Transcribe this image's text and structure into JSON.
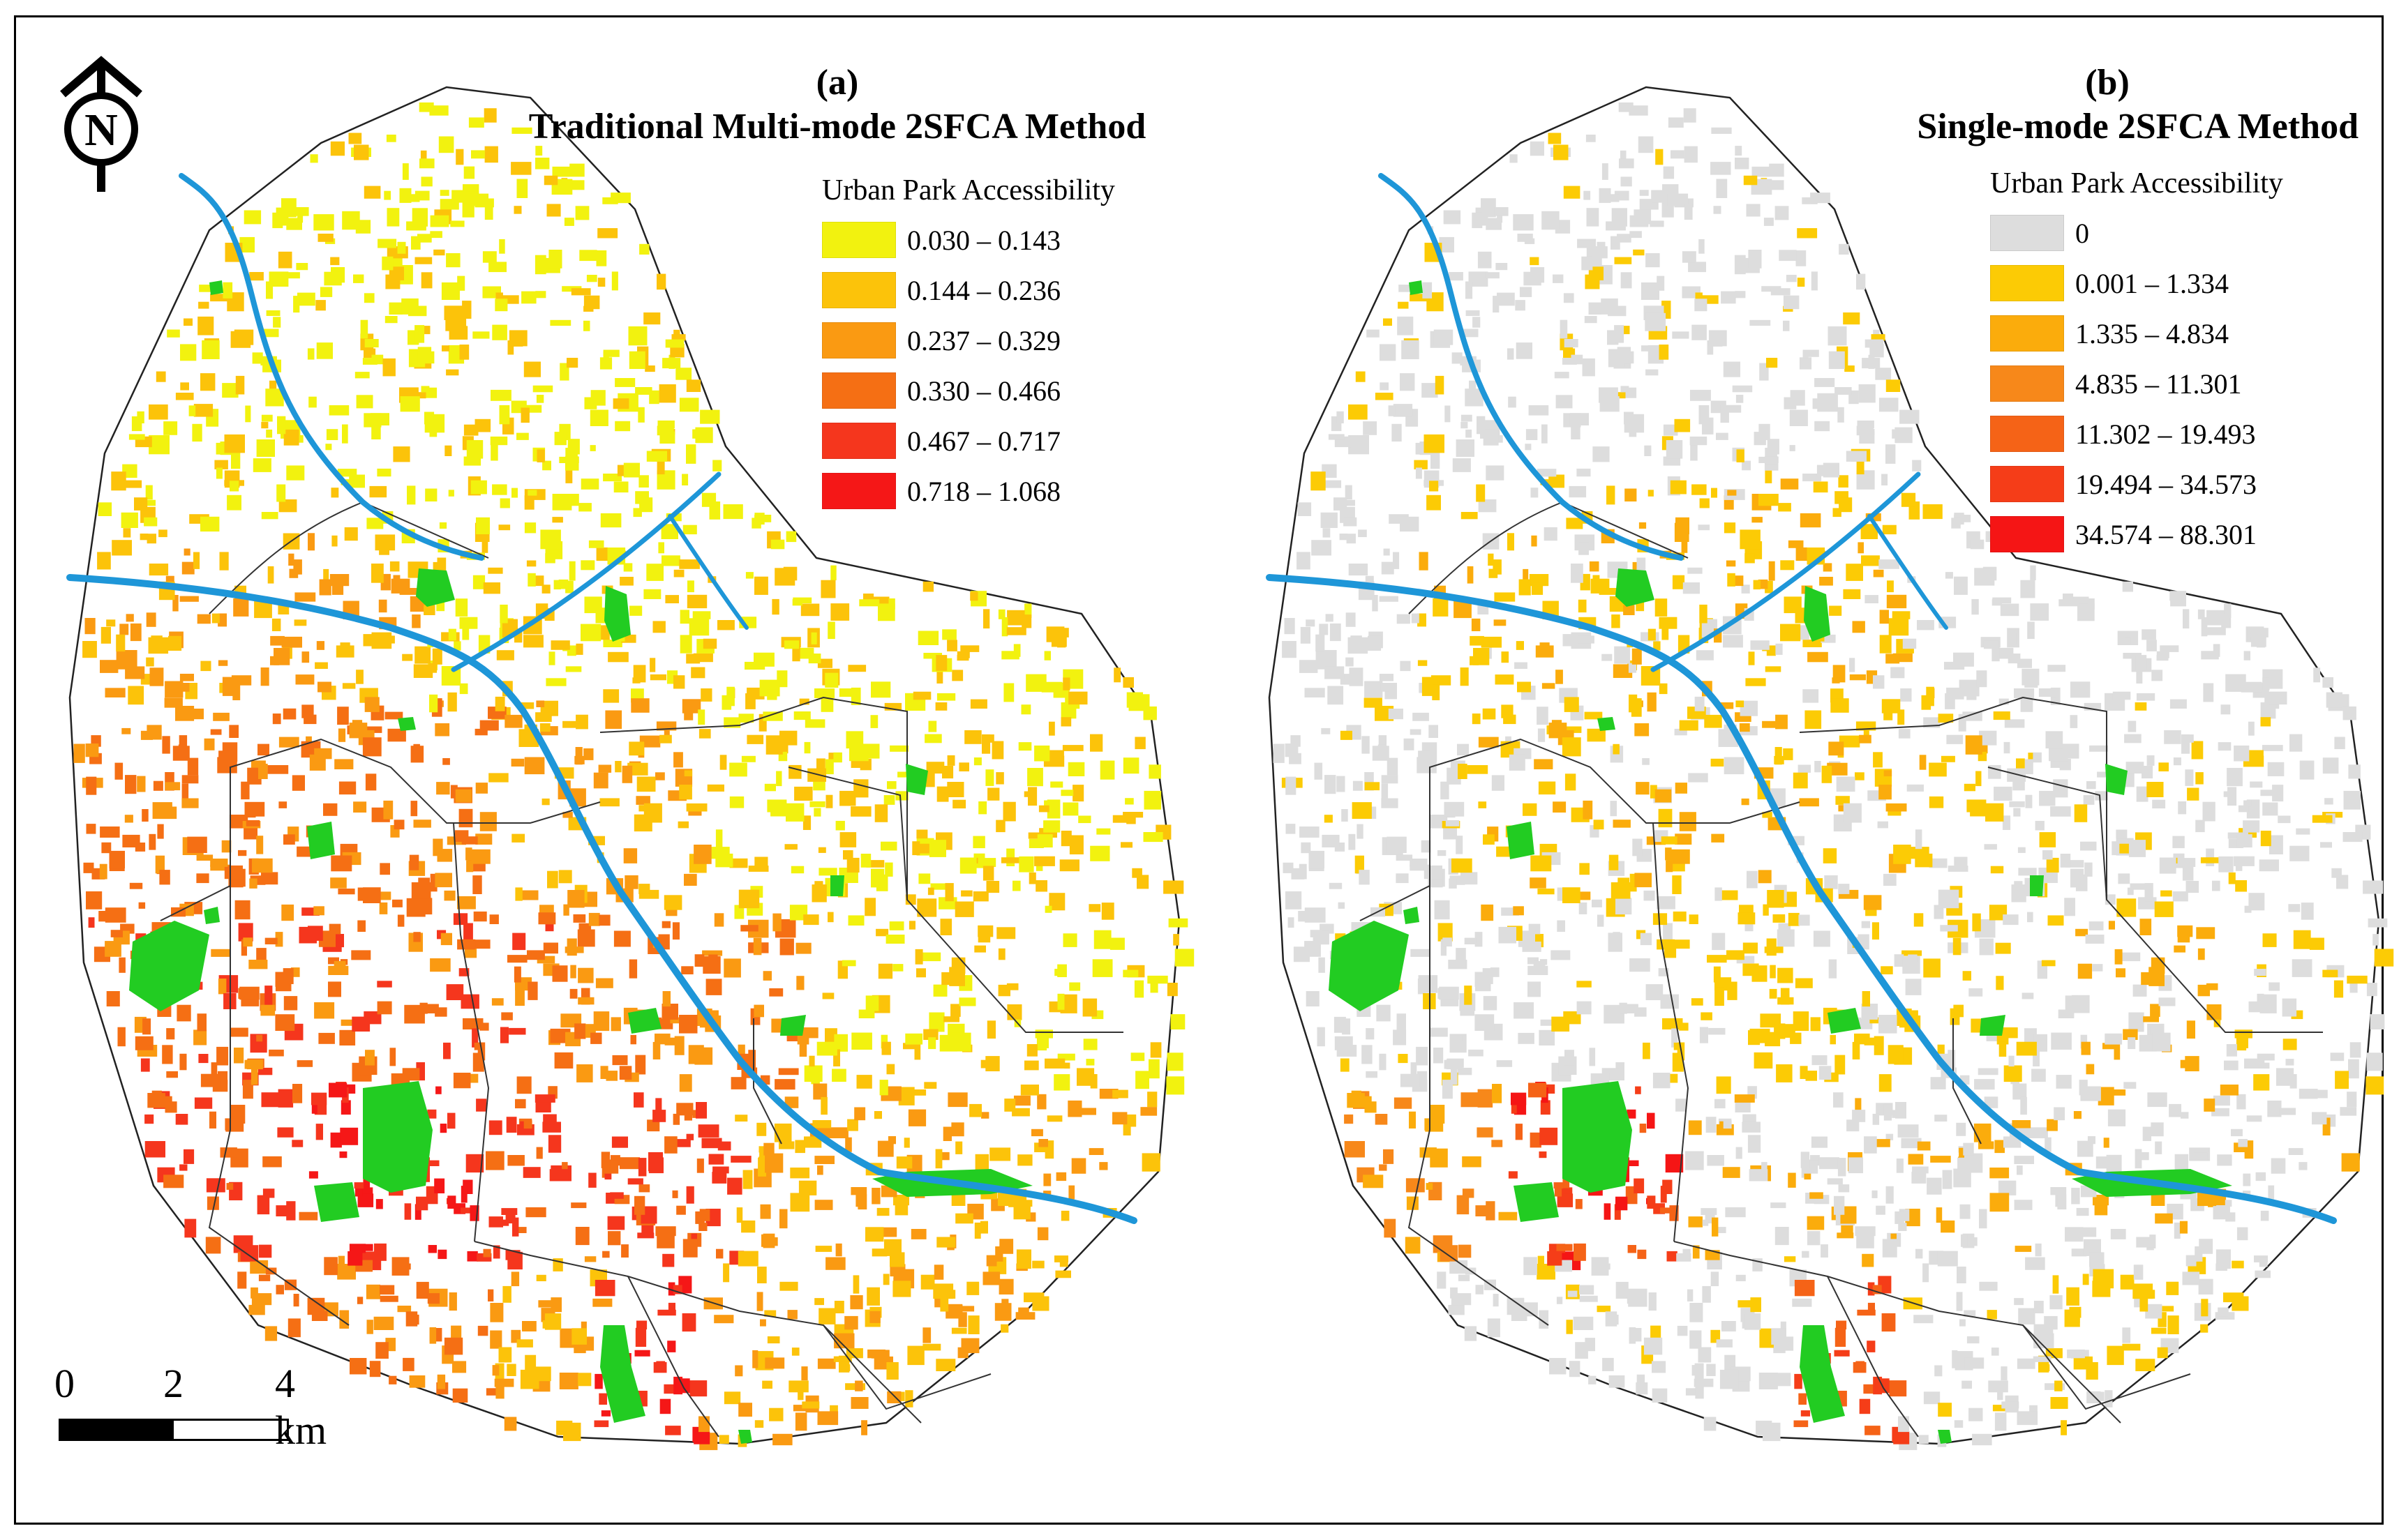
{
  "figure": {
    "panel_a": {
      "label": "(a)",
      "title": "Traditional Multi-mode 2SFCA Method",
      "legend": {
        "title": "Urban Park Accessibility",
        "classes": [
          {
            "range": "0.030 – 0.143",
            "color": "#f2f20f"
          },
          {
            "range": "0.144 – 0.236",
            "color": "#fcc30a"
          },
          {
            "range": "0.237 – 0.329",
            "color": "#fa9a12"
          },
          {
            "range": "0.330 – 0.466",
            "color": "#f56f14"
          },
          {
            "range": "0.467 – 0.717",
            "color": "#f5361d"
          },
          {
            "range": "0.718 – 1.068",
            "color": "#f51717"
          }
        ]
      }
    },
    "panel_b": {
      "label": "(b)",
      "title": "Single-mode 2SFCA Method",
      "legend": {
        "title": "Urban Park Accessibility",
        "classes": [
          {
            "range": "0",
            "color": "#dddddd"
          },
          {
            "range": "0.001 – 1.334",
            "color": "#fccb05"
          },
          {
            "range": "1.335 – 4.834",
            "color": "#fbac0c"
          },
          {
            "range": "4.835 – 11.301",
            "color": "#f7881a"
          },
          {
            "range": "11.302 – 19.493",
            "color": "#f56317"
          },
          {
            "range": "19.494 – 34.573",
            "color": "#f53d18"
          },
          {
            "range": "34.574 – 88.301",
            "color": "#f51515"
          }
        ]
      }
    },
    "north_arrow": {
      "letter": "N"
    },
    "scale_bar": {
      "ticks": [
        "0",
        "2",
        "4 km"
      ]
    },
    "colors": {
      "park": "#22cc22",
      "river": "#1e96d8",
      "boundary": "#333333"
    }
  }
}
